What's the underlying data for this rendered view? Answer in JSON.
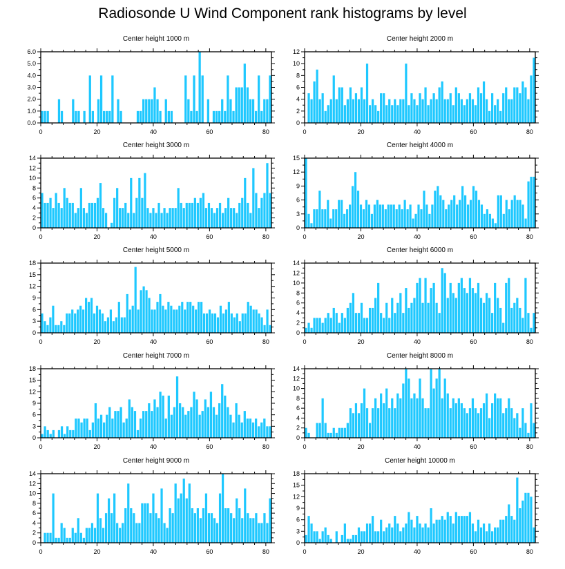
{
  "title": "Radiosonde U Wind Component rank histograms by level",
  "bar_color": "#1ec8ff",
  "chart_data": [
    {
      "type": "bar",
      "title": "Center height 1000 m",
      "xlim": [
        0,
        82
      ],
      "ylim": [
        0,
        6
      ],
      "yticks": [
        0,
        1,
        2,
        3,
        4,
        5,
        6
      ],
      "ytick_labels": [
        "0.0",
        "1.0",
        "2.0",
        "3.0",
        "4.0",
        "5.0",
        "6.0"
      ],
      "xticks": [
        0,
        20,
        40,
        60,
        80
      ],
      "xtick_labels": [
        "0",
        "20",
        "40",
        "60",
        "80"
      ],
      "values": [
        1,
        1,
        1,
        0,
        0,
        0,
        2,
        1,
        0,
        0,
        0,
        2,
        1,
        1,
        0,
        1,
        0,
        4,
        1,
        0,
        2,
        4,
        1,
        1,
        1,
        4,
        0,
        2,
        1,
        0,
        0,
        0,
        0,
        0,
        1,
        1,
        2,
        2,
        2,
        2,
        3,
        2,
        1,
        0,
        2,
        1,
        1,
        0,
        0,
        0,
        0,
        4,
        2,
        1,
        4,
        1,
        6,
        4,
        0,
        2,
        0,
        1,
        1,
        1,
        2,
        1,
        4,
        2,
        1,
        3,
        3,
        3,
        5,
        3,
        2,
        2,
        1,
        4,
        1,
        2,
        2,
        4
      ]
    },
    {
      "type": "bar",
      "title": "Center height 2000 m",
      "xlim": [
        0,
        82
      ],
      "ylim": [
        0,
        12
      ],
      "yticks": [
        0,
        2,
        4,
        6,
        8,
        10,
        12
      ],
      "ytick_labels": [
        "0",
        "2",
        "4",
        "6",
        "8",
        "10",
        "12"
      ],
      "xticks": [
        0,
        20,
        40,
        60,
        80
      ],
      "xtick_labels": [
        "0",
        "20",
        "40",
        "60",
        "80"
      ],
      "values": [
        0,
        5,
        4,
        7,
        9,
        4,
        5,
        2,
        3,
        4,
        8,
        4,
        6,
        6,
        3,
        4,
        6,
        4,
        5,
        4,
        6,
        4,
        10,
        3,
        4,
        3,
        2,
        5,
        5,
        3,
        4,
        3,
        4,
        3,
        4,
        4,
        10,
        3,
        5,
        4,
        3,
        5,
        4,
        6,
        3,
        4,
        5,
        4,
        6,
        7,
        4,
        4,
        5,
        3,
        6,
        5,
        4,
        3,
        4,
        5,
        4,
        3,
        6,
        5,
        7,
        4,
        2,
        5,
        3,
        4,
        2,
        5,
        6,
        4,
        4,
        6,
        6,
        5,
        7,
        6,
        4,
        8,
        11
      ]
    },
    {
      "type": "bar",
      "title": "Center height 3000 m",
      "xlim": [
        0,
        82
      ],
      "ylim": [
        0,
        14
      ],
      "yticks": [
        0,
        2,
        4,
        6,
        8,
        10,
        12,
        14
      ],
      "ytick_labels": [
        "0",
        "2",
        "4",
        "6",
        "8",
        "10",
        "12",
        "14"
      ],
      "xticks": [
        0,
        20,
        40,
        60,
        80
      ],
      "xtick_labels": [
        "0",
        "20",
        "40",
        "60",
        "80"
      ],
      "values": [
        7,
        5,
        5,
        6,
        4,
        7,
        5,
        4,
        8,
        6,
        5,
        5,
        3,
        4,
        8,
        4,
        3,
        5,
        5,
        5,
        6,
        9,
        4,
        3,
        0,
        1,
        6,
        8,
        4,
        4,
        5,
        3,
        10,
        3,
        6,
        10,
        6,
        11,
        4,
        3,
        4,
        3,
        5,
        3,
        4,
        3,
        4,
        4,
        4,
        8,
        5,
        4,
        5,
        5,
        5,
        6,
        5,
        6,
        7,
        4,
        5,
        4,
        3,
        4,
        5,
        3,
        4,
        6,
        4,
        4,
        3,
        5,
        6,
        10,
        5,
        3,
        12,
        7,
        4,
        6,
        7,
        13,
        7
      ]
    },
    {
      "type": "bar",
      "title": "Center height 4000 m",
      "xlim": [
        0,
        82
      ],
      "ylim": [
        0,
        15
      ],
      "yticks": [
        0,
        3,
        6,
        9,
        12,
        15
      ],
      "ytick_labels": [
        "0",
        "3",
        "6",
        "9",
        "12",
        "15"
      ],
      "xticks": [
        0,
        20,
        40,
        60,
        80
      ],
      "xtick_labels": [
        "0",
        "20",
        "40",
        "60",
        "80"
      ],
      "values": [
        15,
        3,
        1,
        4,
        4,
        8,
        4,
        4,
        6,
        2,
        4,
        4,
        6,
        6,
        3,
        4,
        5,
        9,
        12,
        8,
        5,
        4,
        6,
        5,
        3,
        5,
        6,
        5,
        5,
        4,
        5,
        5,
        5,
        4,
        5,
        4,
        6,
        4,
        5,
        2,
        3,
        5,
        4,
        8,
        5,
        3,
        5,
        8,
        9,
        7,
        6,
        4,
        5,
        6,
        7,
        5,
        6,
        9,
        7,
        5,
        6,
        9,
        8,
        6,
        5,
        3,
        4,
        3,
        2,
        1,
        7,
        7,
        3,
        6,
        4,
        6,
        7,
        6,
        6,
        5,
        2,
        10,
        11,
        11
      ]
    },
    {
      "type": "bar",
      "title": "Center height 5000 m",
      "xlim": [
        0,
        82
      ],
      "ylim": [
        0,
        18
      ],
      "yticks": [
        0,
        3,
        6,
        9,
        12,
        15,
        18
      ],
      "ytick_labels": [
        "0",
        "3",
        "6",
        "9",
        "12",
        "15",
        "18"
      ],
      "xticks": [
        0,
        20,
        40,
        60,
        80
      ],
      "xtick_labels": [
        "0",
        "20",
        "40",
        "60",
        "80"
      ],
      "values": [
        5,
        3,
        2,
        4,
        7,
        2,
        2,
        3,
        2,
        5,
        5,
        6,
        5,
        6,
        7,
        6,
        9,
        8,
        9,
        5,
        7,
        6,
        5,
        3,
        4,
        6,
        3,
        4,
        8,
        4,
        4,
        10,
        6,
        7,
        17,
        6,
        11,
        12,
        11,
        9,
        6,
        6,
        8,
        10,
        7,
        6,
        8,
        7,
        6,
        6,
        7,
        8,
        6,
        8,
        8,
        7,
        6,
        8,
        8,
        5,
        5,
        6,
        5,
        5,
        4,
        7,
        5,
        6,
        8,
        5,
        4,
        5,
        3,
        5,
        5,
        8,
        7,
        6,
        6,
        5,
        4,
        2,
        6,
        2
      ]
    },
    {
      "type": "bar",
      "title": "Center height 6000 m",
      "xlim": [
        0,
        82
      ],
      "ylim": [
        0,
        14
      ],
      "yticks": [
        0,
        2,
        4,
        6,
        8,
        10,
        12,
        14
      ],
      "ytick_labels": [
        "0",
        "2",
        "4",
        "6",
        "8",
        "10",
        "12",
        "14"
      ],
      "xticks": [
        0,
        20,
        40,
        60,
        80
      ],
      "xtick_labels": [
        "0",
        "20",
        "40",
        "60",
        "80"
      ],
      "values": [
        1,
        2,
        1,
        3,
        3,
        3,
        2,
        3,
        4,
        3,
        5,
        4,
        2,
        4,
        3,
        5,
        6,
        8,
        4,
        4,
        6,
        3,
        3,
        5,
        5,
        7,
        10,
        4,
        3,
        6,
        3,
        7,
        4,
        6,
        8,
        4,
        9,
        5,
        6,
        7,
        10,
        11,
        6,
        11,
        6,
        9,
        10,
        6,
        4,
        13,
        12,
        7,
        10,
        8,
        7,
        10,
        11,
        9,
        8,
        11,
        9,
        8,
        10,
        7,
        6,
        8,
        7,
        4,
        10,
        7,
        5,
        2,
        10,
        11,
        5,
        6,
        7,
        5,
        3,
        11,
        4,
        1,
        4
      ]
    },
    {
      "type": "bar",
      "title": "Center height 7000 m",
      "xlim": [
        0,
        82
      ],
      "ylim": [
        0,
        18
      ],
      "yticks": [
        0,
        3,
        6,
        9,
        12,
        15,
        18
      ],
      "ytick_labels": [
        "0",
        "3",
        "6",
        "9",
        "12",
        "15",
        "18"
      ],
      "xticks": [
        0,
        20,
        40,
        60,
        80
      ],
      "xtick_labels": [
        "0",
        "20",
        "40",
        "60",
        "80"
      ],
      "values": [
        1,
        3,
        2,
        1,
        2,
        0,
        2,
        3,
        1,
        3,
        2,
        2,
        5,
        5,
        4,
        5,
        5,
        2,
        4,
        9,
        5,
        6,
        4,
        6,
        8,
        5,
        7,
        7,
        8,
        4,
        5,
        10,
        8,
        7,
        2,
        5,
        7,
        7,
        9,
        7,
        10,
        8,
        12,
        11,
        5,
        11,
        6,
        8,
        16,
        9,
        8,
        6,
        7,
        8,
        12,
        10,
        6,
        7,
        10,
        8,
        12,
        8,
        6,
        9,
        14,
        11,
        8,
        6,
        4,
        9,
        6,
        4,
        7,
        5,
        5,
        4,
        5,
        3,
        4,
        5,
        3,
        3
      ]
    },
    {
      "type": "bar",
      "title": "Center height 8000 m",
      "xlim": [
        0,
        82
      ],
      "ylim": [
        0,
        14
      ],
      "yticks": [
        0,
        2,
        4,
        6,
        8,
        10,
        12,
        14
      ],
      "ytick_labels": [
        "0",
        "2",
        "4",
        "6",
        "8",
        "10",
        "12",
        "14"
      ],
      "xticks": [
        0,
        20,
        40,
        60,
        80
      ],
      "xtick_labels": [
        "0",
        "20",
        "40",
        "60",
        "80"
      ],
      "values": [
        2,
        1,
        0,
        0,
        3,
        3,
        8,
        3,
        1,
        1,
        2,
        1,
        2,
        2,
        2,
        3,
        6,
        5,
        7,
        5,
        7,
        10,
        6,
        3,
        6,
        8,
        6,
        9,
        7,
        10,
        6,
        8,
        6,
        9,
        8,
        11,
        14,
        12,
        8,
        9,
        8,
        12,
        8,
        6,
        6,
        14,
        10,
        12,
        14,
        8,
        12,
        9,
        6,
        8,
        7,
        8,
        7,
        6,
        5,
        6,
        8,
        6,
        5,
        6,
        7,
        9,
        4,
        7,
        9,
        8,
        8,
        5,
        6,
        8,
        6,
        4,
        5,
        2,
        6,
        3,
        1,
        7,
        3
      ]
    },
    {
      "type": "bar",
      "title": "Center height 9000 m",
      "xlim": [
        0,
        82
      ],
      "ylim": [
        0,
        14
      ],
      "yticks": [
        0,
        2,
        4,
        6,
        8,
        10,
        12,
        14
      ],
      "ytick_labels": [
        "0",
        "2",
        "4",
        "6",
        "8",
        "10",
        "12",
        "14"
      ],
      "xticks": [
        0,
        20,
        40,
        60,
        80
      ],
      "xtick_labels": [
        "0",
        "20",
        "40",
        "60",
        "80"
      ],
      "values": [
        0,
        2,
        2,
        2,
        10,
        1,
        1,
        4,
        3,
        1,
        1,
        3,
        2,
        5,
        2,
        1,
        3,
        3,
        4,
        3,
        10,
        5,
        3,
        6,
        9,
        6,
        10,
        4,
        3,
        4,
        7,
        12,
        7,
        6,
        4,
        4,
        8,
        8,
        8,
        6,
        10,
        6,
        5,
        11,
        4,
        3,
        7,
        6,
        12,
        9,
        10,
        13,
        9,
        12,
        7,
        6,
        7,
        5,
        7,
        10,
        6,
        6,
        5,
        4,
        10,
        14,
        7,
        7,
        6,
        5,
        9,
        7,
        5,
        11,
        6,
        5,
        5,
        6,
        4,
        4,
        6,
        4,
        9
      ]
    },
    {
      "type": "bar",
      "title": "Center height 10000 m",
      "xlim": [
        0,
        82
      ],
      "ylim": [
        0,
        18
      ],
      "yticks": [
        0,
        3,
        6,
        9,
        12,
        15,
        18
      ],
      "ytick_labels": [
        "0",
        "3",
        "6",
        "9",
        "12",
        "15",
        "18"
      ],
      "xticks": [
        0,
        20,
        40,
        60,
        80
      ],
      "xtick_labels": [
        "0",
        "20",
        "40",
        "60",
        "80"
      ],
      "values": [
        2,
        7,
        5,
        3,
        3,
        1,
        3,
        4,
        2,
        1,
        0,
        3,
        0,
        2,
        5,
        1,
        1,
        2,
        2,
        4,
        3,
        3,
        5,
        5,
        7,
        3,
        3,
        6,
        3,
        4,
        5,
        4,
        7,
        5,
        3,
        4,
        5,
        8,
        6,
        4,
        7,
        5,
        4,
        5,
        4,
        9,
        5,
        6,
        6,
        7,
        6,
        8,
        7,
        5,
        8,
        7,
        7,
        7,
        7,
        8,
        5,
        3,
        6,
        4,
        5,
        3,
        5,
        3,
        4,
        4,
        6,
        6,
        7,
        10,
        7,
        6,
        17,
        9,
        11,
        13,
        13,
        12,
        4
      ]
    }
  ]
}
